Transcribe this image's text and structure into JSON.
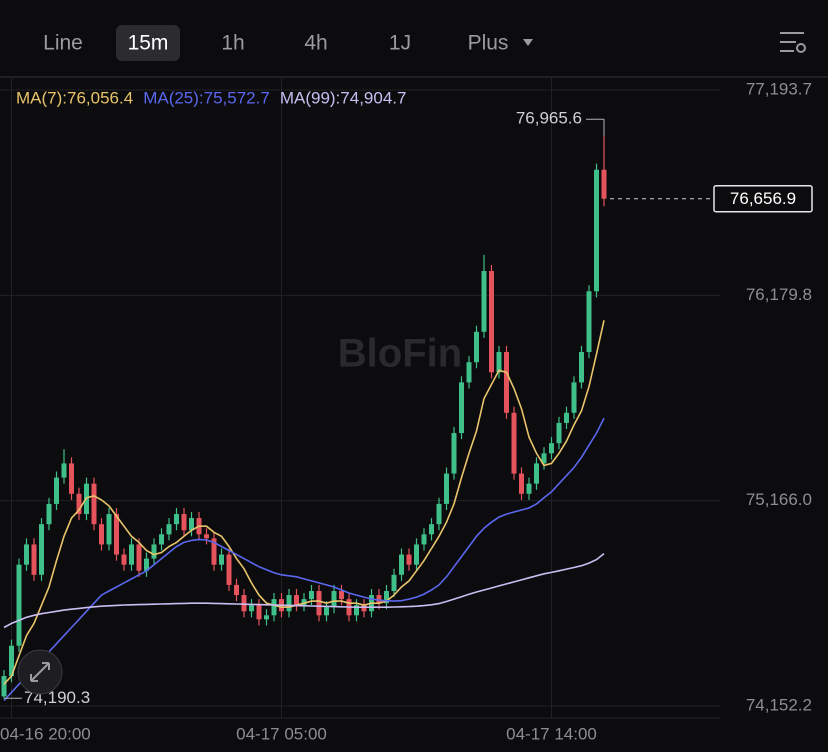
{
  "toolbar": {
    "tabs": [
      "Line",
      "15m",
      "1h",
      "4h",
      "1J",
      "Plus"
    ]
  },
  "watermark": "BloFin",
  "chart_data": {
    "type": "candlestick",
    "up_color": "#3fbf8a",
    "down_color": "#e5535d",
    "grid": true,
    "ylim": [
      74093,
      77253
    ],
    "yticks": [
      {
        "value": 77193.7,
        "label": "77,193.7"
      },
      {
        "value": 76179.8,
        "label": "76,179.8"
      },
      {
        "value": 75166.0,
        "label": "75,166.0"
      },
      {
        "value": 74152.2,
        "label": "74,152.2"
      }
    ],
    "categories": [
      null,
      "04-16 20:00",
      null,
      null,
      null,
      null,
      null,
      null,
      null,
      null,
      null,
      null,
      null,
      null,
      null,
      null,
      null,
      null,
      null,
      null,
      null,
      null,
      null,
      null,
      null,
      null,
      null,
      null,
      null,
      null,
      null,
      null,
      null,
      null,
      null,
      null,
      null,
      "04-17 05:00",
      null,
      null,
      null,
      null,
      null,
      null,
      null,
      null,
      null,
      null,
      null,
      null,
      null,
      null,
      null,
      null,
      null,
      null,
      null,
      null,
      null,
      null,
      null,
      null,
      null,
      null,
      null,
      null,
      null,
      null,
      null,
      null,
      null,
      null,
      null,
      "04-17 14:00",
      null,
      null,
      null,
      null,
      null,
      null,
      null
    ],
    "open": [
      74200,
      74300,
      74450,
      74850,
      74950,
      74800,
      75050,
      75150,
      75280,
      75350,
      75200,
      75100,
      75250,
      75050,
      74950,
      75100,
      74900,
      74850,
      74950,
      74820,
      74880,
      74950,
      75000,
      75050,
      75100,
      75020,
      75080,
      75000,
      74980,
      74850,
      74900,
      74750,
      74700,
      74620,
      74650,
      74580,
      74600,
      74680,
      74620,
      74700,
      74650,
      74680,
      74720,
      74600,
      74640,
      74720,
      74680,
      74600,
      74650,
      74620,
      74700,
      74660,
      74720,
      74800,
      74900,
      74850,
      74950,
      75000,
      75050,
      75150,
      75300,
      75500,
      75750,
      75850,
      76000,
      76300,
      75800,
      75900,
      75600,
      75300,
      75200,
      75250,
      75350,
      75400,
      75450,
      75550,
      75600,
      75750,
      75900,
      76200,
      76800
    ],
    "high": [
      74330,
      74480,
      74880,
      74980,
      74980,
      75080,
      75180,
      75310,
      75420,
      75380,
      75230,
      75280,
      75280,
      75080,
      75130,
      75130,
      74930,
      74980,
      74980,
      74910,
      74980,
      75030,
      75080,
      75130,
      75130,
      75110,
      75110,
      75030,
      75010,
      74930,
      74930,
      74780,
      74730,
      74680,
      74680,
      74630,
      74710,
      74710,
      74730,
      74730,
      74710,
      74750,
      74750,
      74670,
      74750,
      74750,
      74710,
      74680,
      74680,
      74730,
      74730,
      74750,
      74830,
      74930,
      74930,
      74980,
      75030,
      75080,
      75180,
      75330,
      75530,
      75780,
      75880,
      76030,
      76380,
      76330,
      75930,
      75930,
      75630,
      75330,
      75280,
      75380,
      75430,
      75480,
      75580,
      75630,
      75780,
      75930,
      76230,
      76830,
      76965.6
    ],
    "low": [
      74190.3,
      74270,
      74420,
      74820,
      74770,
      74770,
      75020,
      75120,
      75250,
      75170,
      75070,
      75070,
      75020,
      74920,
      74920,
      74870,
      74820,
      74820,
      74790,
      74790,
      74850,
      74920,
      74970,
      75020,
      74990,
      74990,
      74970,
      74950,
      74820,
      74820,
      74720,
      74670,
      74590,
      74590,
      74550,
      74550,
      74570,
      74590,
      74590,
      74620,
      74620,
      74650,
      74570,
      74570,
      74610,
      74650,
      74570,
      74570,
      74590,
      74590,
      74630,
      74630,
      74690,
      74770,
      74820,
      74820,
      74920,
      74970,
      75020,
      75120,
      75270,
      75470,
      75720,
      75820,
      75970,
      75770,
      75770,
      75570,
      75270,
      75170,
      75170,
      75220,
      75320,
      75370,
      75420,
      75520,
      75570,
      75720,
      75870,
      76170,
      76620
    ],
    "close": [
      74300,
      74450,
      74850,
      74950,
      74800,
      75050,
      75150,
      75280,
      75350,
      75200,
      75100,
      75250,
      75050,
      74950,
      75100,
      74900,
      74850,
      74950,
      74820,
      74880,
      74950,
      75000,
      75050,
      75100,
      75020,
      75080,
      75000,
      74980,
      74850,
      74900,
      74750,
      74700,
      74620,
      74650,
      74580,
      74600,
      74680,
      74620,
      74700,
      74650,
      74680,
      74720,
      74600,
      74640,
      74720,
      74680,
      74600,
      74650,
      74620,
      74700,
      74660,
      74720,
      74800,
      74900,
      74850,
      74950,
      75000,
      75050,
      75150,
      75300,
      75500,
      75750,
      75850,
      76000,
      76300,
      75800,
      75900,
      75600,
      75300,
      75200,
      75250,
      75350,
      75400,
      75450,
      75550,
      75600,
      75750,
      75900,
      76200,
      76800,
      76656.9
    ],
    "series": [
      {
        "name": "MA(7):76,056.4",
        "color": "#e9c46a",
        "values": [
          74260,
          74300,
          74400,
          74500,
          74560,
          74650,
          74740,
          74870,
          74990,
          75080,
          75120,
          75180,
          75190,
          75170,
          75140,
          75090,
          75040,
          74990,
          74960,
          74920,
          74900,
          74910,
          74940,
          74960,
          74990,
          75020,
          75040,
          75040,
          75010,
          74990,
          74940,
          74880,
          74830,
          74760,
          74700,
          74660,
          74650,
          74640,
          74640,
          74650,
          74660,
          74670,
          74670,
          74660,
          74670,
          74670,
          74660,
          74660,
          74650,
          74660,
          74660,
          74670,
          74700,
          74740,
          74770,
          74820,
          74870,
          74930,
          74990,
          75060,
          75150,
          75280,
          75400,
          75510,
          75670,
          75740,
          75810,
          75800,
          75720,
          75620,
          75480,
          75400,
          75340,
          75350,
          75400,
          75460,
          75540,
          75610,
          75730,
          75890,
          76056.4
        ]
      },
      {
        "name": "MA(25):75,572.7",
        "color": "#5a67ee",
        "values": [
          74180,
          74220,
          74260,
          74300,
          74340,
          74380,
          74420,
          74460,
          74500,
          74540,
          74580,
          74620,
          74660,
          74700,
          74720,
          74740,
          74760,
          74780,
          74800,
          74820,
          74850,
          74880,
          74910,
          74940,
          74960,
          74970,
          74975,
          74972,
          74960,
          74940,
          74920,
          74900,
          74880,
          74860,
          74840,
          74825,
          74810,
          74800,
          74795,
          74790,
          74780,
          74770,
          74760,
          74750,
          74740,
          74725,
          74710,
          74700,
          74690,
          74680,
          74675,
          74672,
          74670,
          74672,
          74680,
          74690,
          74705,
          74725,
          74750,
          74790,
          74840,
          74890,
          74940,
          74990,
          75030,
          75060,
          75085,
          75100,
          75110,
          75120,
          75130,
          75150,
          75180,
          75210,
          75250,
          75290,
          75330,
          75380,
          75440,
          75500,
          75572.7
        ]
      },
      {
        "name": "MA(99):74,904.7",
        "color": "#c9bdf2",
        "values": [
          74540,
          74560,
          74575,
          74590,
          74600,
          74608,
          74614,
          74620,
          74626,
          74630,
          74634,
          74638,
          74642,
          74645,
          74647,
          74649,
          74651,
          74652,
          74653,
          74654,
          74655,
          74656,
          74657,
          74658,
          74659,
          74660,
          74660,
          74660,
          74659,
          74658,
          74657,
          74656,
          74655,
          74654,
          74653,
          74652,
          74651,
          74650,
          74649,
          74648,
          74647,
          74646,
          74645,
          74644,
          74643,
          74642,
          74641,
          74640,
          74640,
          74640,
          74640,
          74640,
          74641,
          74642,
          74643,
          74645,
          74648,
          74652,
          74658,
          74668,
          74680,
          74692,
          74704,
          74715,
          74725,
          74735,
          74745,
          74755,
          74765,
          74775,
          74785,
          74795,
          74805,
          74812,
          74820,
          74828,
          74836,
          74845,
          74858,
          74875,
          74904.7
        ]
      }
    ],
    "high_label": "76,965.6",
    "low_label": "74,190.3",
    "last_label": "76,656.9"
  }
}
